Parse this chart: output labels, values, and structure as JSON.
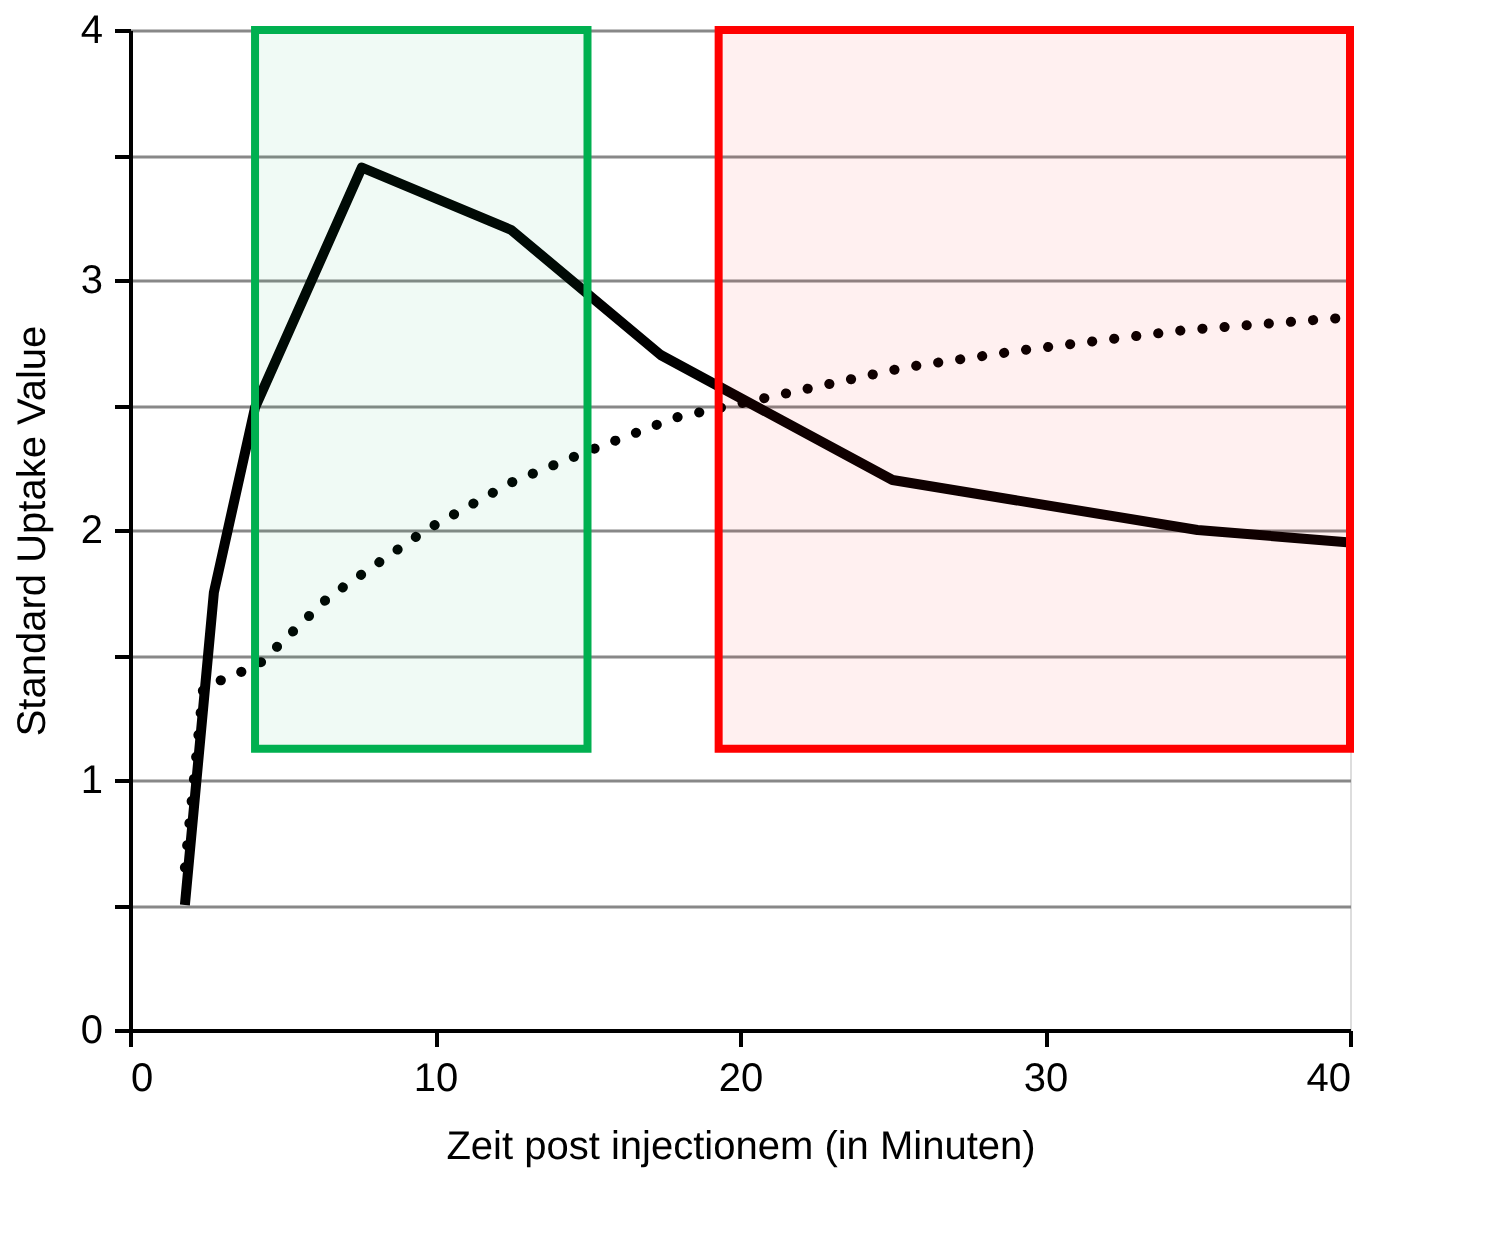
{
  "chart_data": {
    "type": "line",
    "xlabel": "Zeit post injectionem (in Minuten)",
    "ylabel": "Standard Uptake Value",
    "xlim": [
      0,
      40
    ],
    "xticks": [
      0,
      10,
      20,
      30,
      40
    ],
    "ylim": [
      0,
      4
    ],
    "yticks": [
      0,
      {
        "value": 0.5,
        "label": null
      },
      1,
      {
        "value": 1.5,
        "label": null
      },
      2,
      {
        "value": 2.5,
        "label": null
      },
      3,
      {
        "value": 3.5,
        "label": null
      },
      4
    ],
    "grid": "y",
    "marker": "none",
    "series": [
      {
        "color": "#000000",
        "line_style": "solid",
        "x": [
          1.8,
          2.75,
          4.1,
          7.6,
          12.5,
          17.4,
          25,
          35,
          40
        ],
        "values": [
          0.5,
          1.75,
          2.49,
          3.45,
          3.2,
          2.7,
          2.2,
          2.0,
          1.95
        ]
      },
      {
        "color": "#000000",
        "line_style": "dotted",
        "x": [
          1.8,
          2.4,
          4.2,
          6.5,
          9.7,
          12.5,
          14.9,
          17.9,
          20.9,
          25.4,
          29.3,
          34.6,
          39.9
        ],
        "values": [
          0.65,
          1.37,
          1.46,
          1.73,
          2.0,
          2.19,
          2.31,
          2.45,
          2.53,
          2.65,
          2.72,
          2.8,
          2.85
        ]
      }
    ],
    "bands": [
      {
        "axis": "x",
        "from": 4.1,
        "to": 15.0,
        "color": "#00b050"
      },
      {
        "axis": "x",
        "from": 19.3,
        "to": 40,
        "color": "#ff0000"
      }
    ]
  }
}
